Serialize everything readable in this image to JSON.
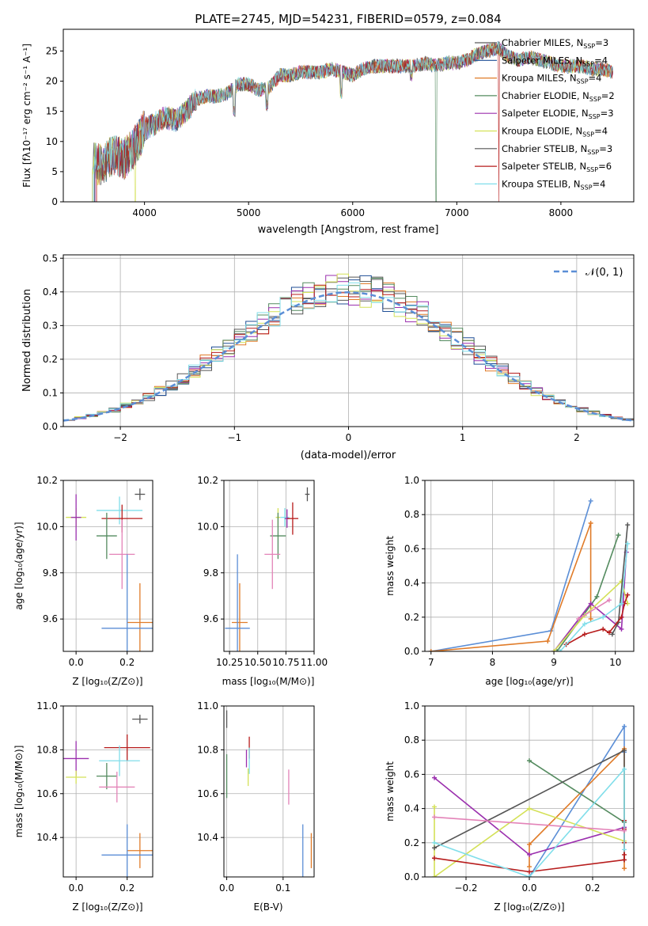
{
  "chart_data": [
    {
      "id": "spectrum",
      "type": "line",
      "title": "PLATE=2745, MJD=54231, FIBERID=0579, z=0.084",
      "xlabel": "wavelength [Angstrom, rest frame]",
      "ylabel": "Flux [fλ10⁻¹⁷ erg cm⁻² s⁻¹ A⁻¹]",
      "xlim": [
        3220,
        8700
      ],
      "ylim": [
        0,
        28.6
      ],
      "xticks": [
        4000,
        5000,
        6000,
        7000,
        8000
      ],
      "yticks": [
        0,
        5,
        10,
        15,
        20,
        25
      ],
      "grid": false,
      "legend_position": "top-right",
      "series": [
        {
          "name": "Chabrier MILES, N",
          "sub": "SSP",
          "suffix": "=3",
          "color": "#5a5a5a"
        },
        {
          "name": "Salpeter MILES, N",
          "sub": "SSP",
          "suffix": "=4",
          "color": "#1f4e96"
        },
        {
          "name": "Kroupa MILES, N",
          "sub": "SSP",
          "suffix": "=4",
          "color": "#e07b28"
        },
        {
          "name": "Chabrier ELODIE, N",
          "sub": "SSP",
          "suffix": "=2",
          "color": "#548b5f"
        },
        {
          "name": "Salpeter ELODIE, N",
          "sub": "SSP",
          "suffix": "=3",
          "color": "#9b2fae"
        },
        {
          "name": "Kroupa ELODIE, N",
          "sub": "SSP",
          "suffix": "=4",
          "color": "#d4e157"
        },
        {
          "name": "Chabrier STELIB, N",
          "sub": "SSP",
          "suffix": "=3",
          "color": "#555555"
        },
        {
          "name": "Salpeter STELIB, N",
          "sub": "SSP",
          "suffix": "=6",
          "color": "#b71c1c"
        },
        {
          "name": "Kroupa STELIB, N",
          "sub": "SSP",
          "suffix": "=4",
          "color": "#80deea"
        }
      ],
      "continuum": [
        [
          3510,
          6.5
        ],
        [
          3600,
          6
        ],
        [
          3700,
          8
        ],
        [
          3800,
          7
        ],
        [
          3900,
          9
        ],
        [
          4000,
          12
        ],
        [
          4100,
          13
        ],
        [
          4200,
          14
        ],
        [
          4300,
          13.5
        ],
        [
          4400,
          15
        ],
        [
          4500,
          17
        ],
        [
          4600,
          17.5
        ],
        [
          4700,
          17.5
        ],
        [
          4800,
          18
        ],
        [
          4900,
          19.5
        ],
        [
          5000,
          19.5
        ],
        [
          5100,
          18.5
        ],
        [
          5200,
          19
        ],
        [
          5300,
          21
        ],
        [
          5400,
          21
        ],
        [
          5500,
          21.5
        ],
        [
          5600,
          21.5
        ],
        [
          5700,
          21.5
        ],
        [
          5800,
          22
        ],
        [
          5900,
          21.5
        ],
        [
          6000,
          21
        ],
        [
          6100,
          22
        ],
        [
          6200,
          22.5
        ],
        [
          6300,
          22.5
        ],
        [
          6400,
          22.5
        ],
        [
          6500,
          22.5
        ],
        [
          6600,
          22.5
        ],
        [
          6700,
          23
        ],
        [
          6800,
          22.5
        ],
        [
          6900,
          23
        ],
        [
          7000,
          23
        ],
        [
          7100,
          23.5
        ],
        [
          7200,
          24.5
        ],
        [
          7300,
          25
        ],
        [
          7400,
          25.5
        ],
        [
          7500,
          24
        ],
        [
          7600,
          23.5
        ],
        [
          7700,
          24
        ],
        [
          7800,
          23.5
        ],
        [
          7900,
          23
        ],
        [
          8000,
          22.5
        ],
        [
          8100,
          22.5
        ],
        [
          8200,
          22.5
        ],
        [
          8300,
          22
        ],
        [
          8400,
          22
        ],
        [
          8500,
          21.5
        ]
      ],
      "dips": [
        [
          4861,
          14
        ],
        [
          5175,
          15
        ],
        [
          5890,
          17
        ],
        [
          6563,
          20
        ]
      ]
    },
    {
      "id": "residuals",
      "type": "step",
      "xlabel": "(data-model)/error",
      "ylabel": "Normed distribution",
      "xlim": [
        -2.5,
        2.5
      ],
      "ylim": [
        0,
        0.51
      ],
      "xticks": [
        -2,
        -1,
        0,
        1,
        2
      ],
      "yticks": [
        0.0,
        0.1,
        0.2,
        0.3,
        0.4,
        0.5
      ],
      "grid": true,
      "bin_width": 0.1,
      "legend_position": "top-right",
      "reference_curve": {
        "name": "𝒩(0, 1)",
        "mean": 0,
        "sigma": 1,
        "color": "#5b8ed6"
      },
      "series_colors": [
        "#5a5a5a",
        "#1f4e96",
        "#e07b28",
        "#548b5f",
        "#9b2fae",
        "#d4e157",
        "#555555",
        "#b71c1c",
        "#80deea"
      ]
    },
    {
      "id": "age-vs-z",
      "type": "errorbar",
      "xlabel": "Z [log₁₀(Z/Z⊙)]",
      "ylabel": "age  [log₁₀(age/yr)]",
      "xlim": [
        -0.05,
        0.3
      ],
      "ylim": [
        9.46,
        10.2
      ],
      "xticks": [
        0.0,
        0.2
      ],
      "yticks": [
        9.6,
        9.8,
        10.0,
        10.2
      ],
      "grid": true,
      "points": [
        {
          "x": 0.25,
          "y": 10.14,
          "xerr": 0.02,
          "yerr": 0.025,
          "color": "#555555"
        },
        {
          "x": 0.17,
          "y": 10.07,
          "xerr": 0.09,
          "yerr": 0.06,
          "color": "#80deea"
        },
        {
          "x": 0.0,
          "y": 10.04,
          "xerr": 0.04,
          "yerr": 0.04,
          "color": "#d4e157"
        },
        {
          "x": 0.0,
          "y": 10.04,
          "xerr": 0.02,
          "yerr": 0.1,
          "color": "#9b2fae"
        },
        {
          "x": 0.18,
          "y": 10.035,
          "xerr": 0.08,
          "yerr": 0.06,
          "color": "#b71c1c"
        },
        {
          "x": 0.12,
          "y": 9.96,
          "xerr": 0.04,
          "yerr": 0.1,
          "color": "#548b5f"
        },
        {
          "x": 0.18,
          "y": 9.88,
          "xerr": 0.05,
          "yerr": 0.15,
          "color": "#e383b8"
        },
        {
          "x": 0.25,
          "y": 9.585,
          "xerr": 0.05,
          "yerr": 0.17,
          "color": "#e07b28"
        },
        {
          "x": 0.2,
          "y": 9.56,
          "xerr": 0.1,
          "yerr": 0.32,
          "color": "#5b8ed6"
        }
      ]
    },
    {
      "id": "age-vs-mass",
      "type": "errorbar",
      "xlabel": "mass [log₁₀(M/M⊙)]",
      "ylabel": "",
      "xlim": [
        10.2,
        11.0
      ],
      "ylim": [
        9.46,
        10.2
      ],
      "xticks": [
        10.25,
        10.5,
        10.75,
        11.0
      ],
      "xtick_labels": [
        "10.25",
        "10.50",
        "10.75",
        "11.00"
      ],
      "yticks": [
        9.6,
        9.8,
        10.0,
        10.2
      ],
      "grid": true,
      "points": [
        {
          "x": 10.94,
          "y": 10.14,
          "xerr": 0.02,
          "yerr": 0.03,
          "color": "#555555"
        },
        {
          "x": 10.74,
          "y": 10.04,
          "xerr": 0.04,
          "yerr": 0.04,
          "color": "#80deea"
        },
        {
          "x": 10.68,
          "y": 10.04,
          "xerr": 0.02,
          "yerr": 0.04,
          "color": "#d4e157"
        },
        {
          "x": 10.76,
          "y": 10.035,
          "xerr": 0.02,
          "yerr": 0.04,
          "color": "#9b2fae"
        },
        {
          "x": 10.81,
          "y": 10.035,
          "xerr": 0.05,
          "yerr": 0.07,
          "color": "#b71c1c"
        },
        {
          "x": 10.68,
          "y": 9.96,
          "xerr": 0.07,
          "yerr": 0.1,
          "color": "#548b5f"
        },
        {
          "x": 10.63,
          "y": 9.88,
          "xerr": 0.07,
          "yerr": 0.15,
          "color": "#e383b8"
        },
        {
          "x": 10.34,
          "y": 9.585,
          "xerr": 0.07,
          "yerr": 0.17,
          "color": "#e07b28"
        },
        {
          "x": 10.32,
          "y": 9.56,
          "xerr": 0.11,
          "yerr": 0.32,
          "color": "#5b8ed6"
        }
      ]
    },
    {
      "id": "mass-weight-vs-age",
      "type": "line",
      "xlabel": "age  [log₁₀(age/yr)]",
      "ylabel": "mass weight",
      "xlim": [
        6.9,
        10.3
      ],
      "ylim": [
        0,
        1.0
      ],
      "xticks": [
        7,
        8,
        9,
        10
      ],
      "yticks": [
        0.0,
        0.2,
        0.4,
        0.6,
        0.8,
        1.0
      ],
      "grid": true,
      "series": [
        {
          "color": "#5b8ed6",
          "x": [
            7.0,
            8.95,
            9.6
          ],
          "y": [
            0.0,
            0.12,
            0.88
          ]
        },
        {
          "color": "#e07b28",
          "x": [
            7.0,
            8.9,
            9.6,
            9.6
          ],
          "y": [
            0.0,
            0.06,
            0.75,
            0.19
          ]
        },
        {
          "color": "#548b5f",
          "x": [
            9.05,
            9.7,
            10.05
          ],
          "y": [
            0.0,
            0.32,
            0.68
          ]
        },
        {
          "color": "#9b2fae",
          "x": [
            9.0,
            9.6,
            10.1,
            10.18
          ],
          "y": [
            0.0,
            0.28,
            0.13,
            0.58
          ]
        },
        {
          "color": "#d4e157",
          "x": [
            9.0,
            9.5,
            10.1,
            10.2
          ],
          "y": [
            0.0,
            0.21,
            0.41,
            0.28
          ]
        },
        {
          "color": "#555555",
          "x": [
            9.95,
            10.05,
            10.2
          ],
          "y": [
            0.1,
            0.17,
            0.74
          ]
        },
        {
          "color": "#b71c1c",
          "x": [
            9.2,
            9.5,
            9.8,
            9.9,
            10.1,
            10.15,
            10.2
          ],
          "y": [
            0.04,
            0.1,
            0.13,
            0.11,
            0.2,
            0.28,
            0.33
          ]
        },
        {
          "color": "#80deea",
          "x": [
            9.1,
            9.5,
            9.8,
            10.1,
            10.2
          ],
          "y": [
            0.0,
            0.16,
            0.2,
            0.28,
            0.63
          ]
        },
        {
          "color": "#e383b8",
          "x": [
            9.4,
            9.9
          ],
          "y": [
            0.19,
            0.3
          ]
        }
      ]
    },
    {
      "id": "mass-vs-z",
      "type": "errorbar",
      "xlabel": "Z [log₁₀(Z/Z⊙)]",
      "ylabel": "mass [log₁₀(M/M⊙)]",
      "xlim": [
        -0.05,
        0.3
      ],
      "ylim": [
        10.22,
        11.0
      ],
      "xticks": [
        0.0,
        0.2
      ],
      "yticks": [
        10.4,
        10.6,
        10.8,
        11.0
      ],
      "grid": true,
      "points": [
        {
          "x": 0.25,
          "y": 10.94,
          "xerr": 0.03,
          "yerr": 0.02,
          "color": "#555555"
        },
        {
          "x": 0.2,
          "y": 10.81,
          "xerr": 0.09,
          "yerr": 0.06,
          "color": "#b71c1c"
        },
        {
          "x": 0.0,
          "y": 10.76,
          "xerr": 0.05,
          "yerr": 0.08,
          "color": "#9b2fae"
        },
        {
          "x": 0.17,
          "y": 10.75,
          "xerr": 0.08,
          "yerr": 0.07,
          "color": "#80deea"
        },
        {
          "x": 0.12,
          "y": 10.68,
          "xerr": 0.04,
          "yerr": 0.06,
          "color": "#548b5f"
        },
        {
          "x": 0.0,
          "y": 10.675,
          "xerr": 0.04,
          "yerr": 0.03,
          "color": "#d4e157"
        },
        {
          "x": 0.16,
          "y": 10.63,
          "xerr": 0.07,
          "yerr": 0.07,
          "color": "#e383b8"
        },
        {
          "x": 0.25,
          "y": 10.34,
          "xerr": 0.05,
          "yerr": 0.08,
          "color": "#e07b28"
        },
        {
          "x": 0.2,
          "y": 10.32,
          "xerr": 0.1,
          "yerr": 0.14,
          "color": "#5b8ed6"
        }
      ]
    },
    {
      "id": "mass-vs-ebv",
      "type": "errorbar",
      "xlabel": "E(B-V)",
      "ylabel": "",
      "xlim": [
        -0.005,
        0.155
      ],
      "ylim": [
        10.22,
        11.0
      ],
      "xticks": [
        0.0,
        0.1
      ],
      "yticks": [
        10.4,
        10.6,
        10.8,
        11.0
      ],
      "grid": true,
      "points": [
        {
          "x": 0.0,
          "y": 10.94,
          "xerr": 0,
          "yerr": 0.04,
          "color": "#555555"
        },
        {
          "x": 0.04,
          "y": 10.81,
          "xerr": 0,
          "yerr": 0.05,
          "color": "#b71c1c"
        },
        {
          "x": 0.035,
          "y": 10.76,
          "xerr": 0,
          "yerr": 0.04,
          "color": "#9b2fae"
        },
        {
          "x": 0.04,
          "y": 10.75,
          "xerr": 0,
          "yerr": 0.06,
          "color": "#80deea"
        },
        {
          "x": 0.0,
          "y": 10.68,
          "xerr": 0,
          "yerr": 0.1,
          "color": "#548b5f"
        },
        {
          "x": 0.038,
          "y": 10.675,
          "xerr": 0,
          "yerr": 0.04,
          "color": "#d4e157"
        },
        {
          "x": 0.11,
          "y": 10.63,
          "xerr": 0,
          "yerr": 0.08,
          "color": "#e383b8"
        },
        {
          "x": 0.15,
          "y": 10.34,
          "xerr": 0,
          "yerr": 0.08,
          "color": "#e07b28"
        },
        {
          "x": 0.135,
          "y": 10.32,
          "xerr": 0,
          "yerr": 0.14,
          "color": "#5b8ed6"
        }
      ]
    },
    {
      "id": "mass-weight-vs-z",
      "type": "line",
      "xlabel": "Z [log₁₀(Z/Z⊙)]",
      "ylabel": "mass weight",
      "xlim": [
        -0.33,
        0.33
      ],
      "ylim": [
        0,
        1.0
      ],
      "xticks": [
        -0.2,
        0.0,
        0.2
      ],
      "yticks": [
        0.0,
        0.2,
        0.4,
        0.6,
        0.8,
        1.0
      ],
      "grid": true,
      "series": [
        {
          "color": "#5b8ed6",
          "x": [
            0.0,
            0.3,
            0.3
          ],
          "y": [
            0.0,
            0.88,
            0.73
          ]
        },
        {
          "color": "#e07b28",
          "x": [
            0.0,
            0.0,
            0.3,
            0.3
          ],
          "y": [
            0.06,
            0.19,
            0.75,
            0.05
          ]
        },
        {
          "color": "#548b5f",
          "x": [
            0.0,
            0.3
          ],
          "y": [
            0.68,
            0.32
          ]
        },
        {
          "color": "#9b2fae",
          "x": [
            -0.3,
            0.0,
            0.3,
            0.3
          ],
          "y": [
            0.58,
            0.13,
            0.29,
            0.28
          ]
        },
        {
          "color": "#d4e157",
          "x": [
            -0.3,
            -0.3,
            0.0,
            0.3
          ],
          "y": [
            0.41,
            0.0,
            0.4,
            0.21
          ]
        },
        {
          "color": "#555555",
          "x": [
            -0.3,
            0.3,
            0.3
          ],
          "y": [
            0.17,
            0.74,
            0.1
          ]
        },
        {
          "color": "#b71c1c",
          "x": [
            -0.3,
            0.0,
            0.3,
            0.3,
            0.3,
            0.3,
            0.3
          ],
          "y": [
            0.11,
            0.03,
            0.1,
            0.13,
            0.2,
            0.28,
            0.33
          ]
        },
        {
          "color": "#80deea",
          "x": [
            -0.3,
            0.0,
            0.3,
            0.3
          ],
          "y": [
            0.2,
            0.0,
            0.63,
            0.16
          ]
        },
        {
          "color": "#e383b8",
          "x": [
            -0.3,
            0.3
          ],
          "y": [
            0.35,
            0.27
          ]
        }
      ]
    }
  ]
}
